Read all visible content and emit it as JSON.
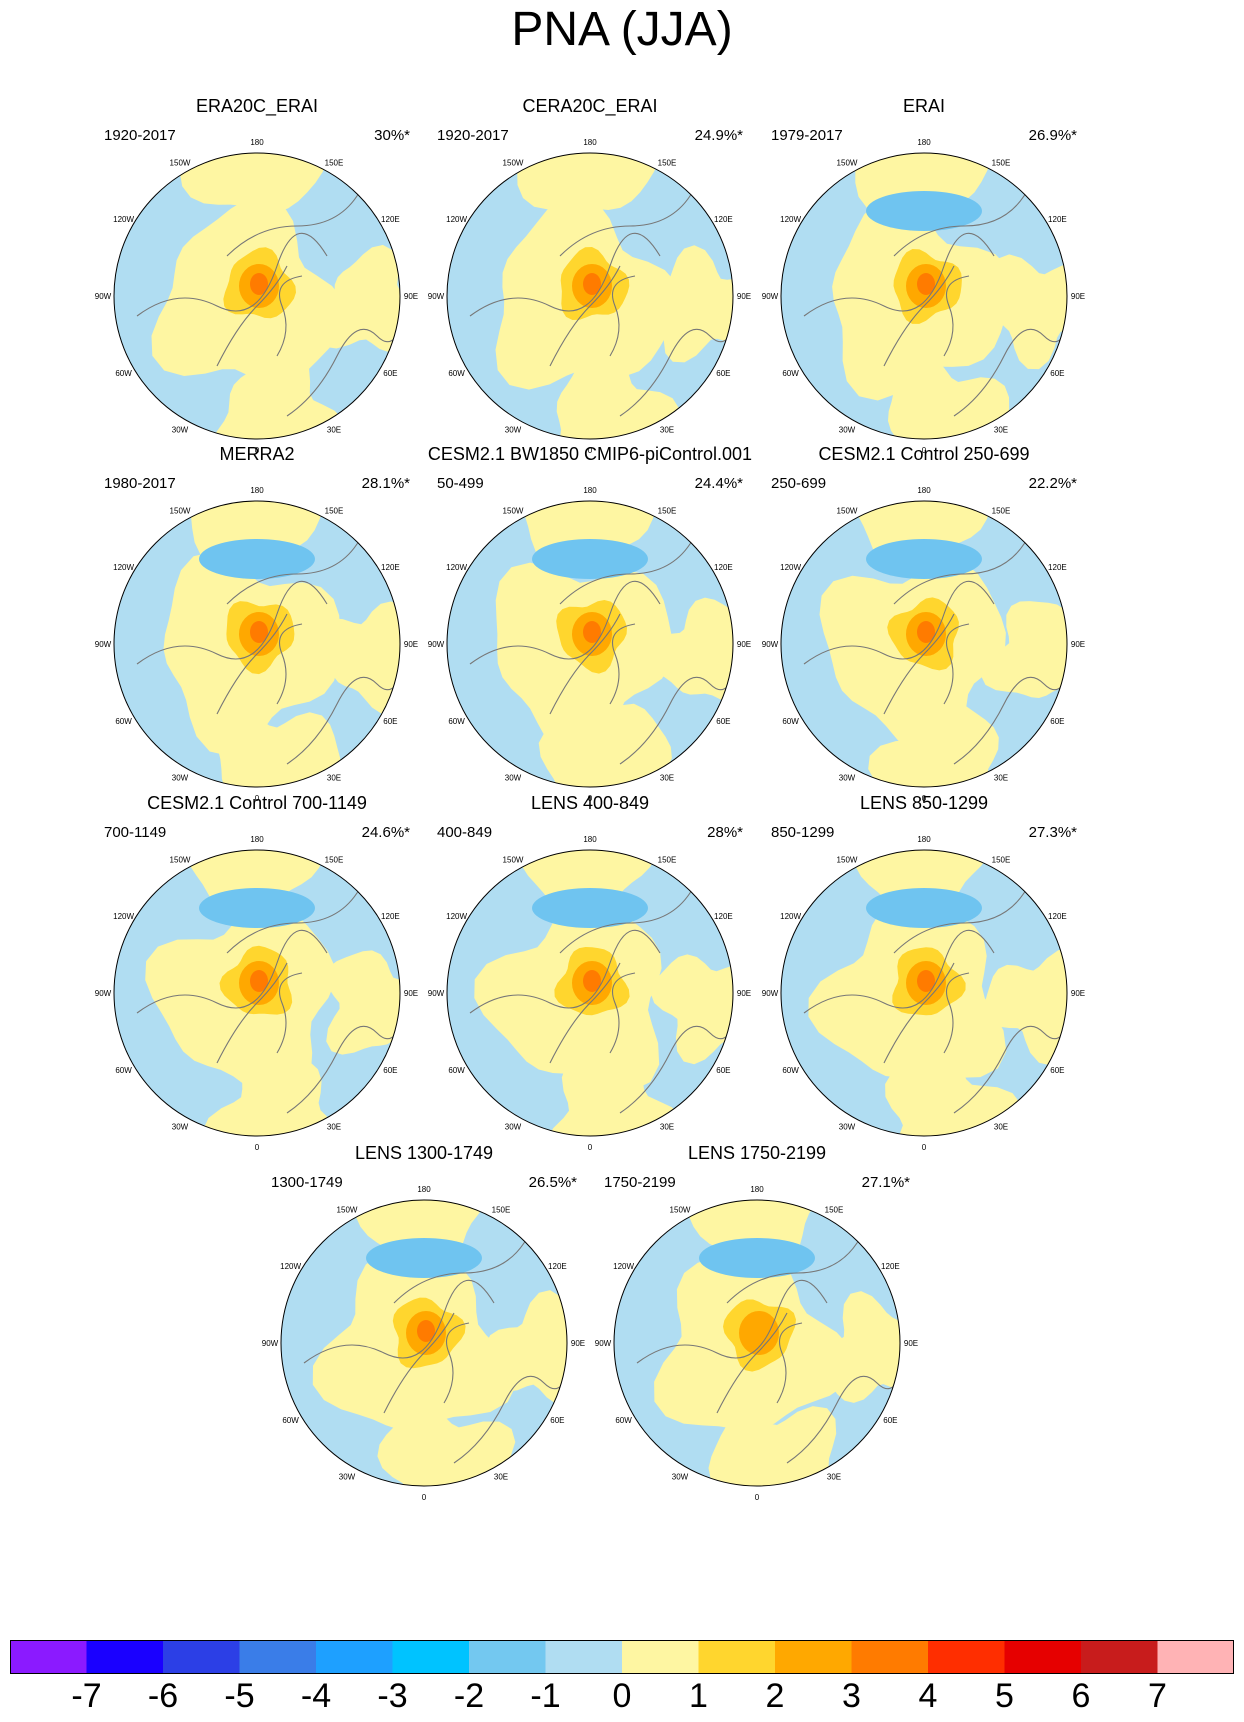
{
  "figure_title": "PNA (JJA)",
  "colors": {
    "ocean_blue": "#b0ddf2",
    "land_yellow": "#fef6a2",
    "neg_mid_blue": "#6fc4f0",
    "pos_1": "#ffd62e",
    "pos_2": "#ffa800",
    "pos_3": "#ff7b00",
    "coast_line": "#777777",
    "circle_edge": "#000000"
  },
  "lon_labels": [
    "180",
    "150E",
    "120E",
    "90E",
    "60E",
    "30E",
    "0",
    "30W",
    "60W",
    "90W",
    "120W",
    "150W"
  ],
  "chart_data": {
    "type": "polar-contour",
    "variable": "PNA (JJA)",
    "colorbar": {
      "labels": [
        "-7",
        "-6",
        "-5",
        "-4",
        "-3",
        "-2",
        "-1",
        "0",
        "1",
        "2",
        "3",
        "4",
        "5",
        "6",
        "7"
      ],
      "colors": [
        "#8b1aff",
        "#1a00ff",
        "#2c3fe6",
        "#3a7de8",
        "#1ea0ff",
        "#00c3ff",
        "#73c8f0",
        "#b0ddf2",
        "#fef6a2",
        "#ffd62e",
        "#ffa800",
        "#ff7b00",
        "#ff2e00",
        "#e60000",
        "#c81c1c",
        "#ffb3b5"
      ]
    },
    "panels": [
      {
        "title": "ERA20C_ERAI",
        "years": "1920-2017",
        "variance": "30%*",
        "center_max": 3,
        "pacific_blue": false
      },
      {
        "title": "CERA20C_ERAI",
        "years": "1920-2017",
        "variance": "24.9%*",
        "center_max": 3,
        "pacific_blue": false
      },
      {
        "title": "ERAI",
        "years": "1979-2017",
        "variance": "26.9%*",
        "center_max": 3,
        "pacific_blue": true
      },
      {
        "title": "MERRA2",
        "years": "1980-2017",
        "variance": "28.1%*",
        "center_max": 3,
        "pacific_blue": true
      },
      {
        "title": "CESM2.1 BW1850 CMIP6-piControl.001",
        "years": "50-499",
        "variance": "24.4%*",
        "center_max": 3,
        "pacific_blue": true
      },
      {
        "title": "CESM2.1 Control 250-699",
        "years": "250-699",
        "variance": "22.2%*",
        "center_max": 3,
        "pacific_blue": true
      },
      {
        "title": "CESM2.1 Control 700-1149",
        "years": "700-1149",
        "variance": "24.6%*",
        "center_max": 3,
        "pacific_blue": true
      },
      {
        "title": "LENS 400-849",
        "years": "400-849",
        "variance": "28%*",
        "center_max": 3,
        "pacific_blue": true
      },
      {
        "title": "LENS 850-1299",
        "years": "850-1299",
        "variance": "27.3%*",
        "center_max": 3,
        "pacific_blue": true
      },
      {
        "title": "LENS 1300-1749",
        "years": "1300-1749",
        "variance": "26.5%*",
        "center_max": 3,
        "pacific_blue": true
      },
      {
        "title": "LENS 1750-2199",
        "years": "1750-2199",
        "variance": "27.1%*",
        "center_max": 2,
        "pacific_blue": true
      }
    ]
  }
}
